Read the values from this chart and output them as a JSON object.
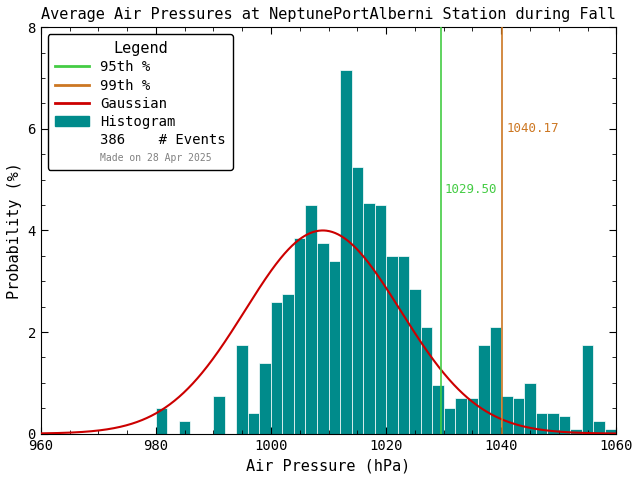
{
  "title": "Average Air Pressures at NeptunePortAlberni Station during Fall",
  "xlabel": "Air Pressure (hPa)",
  "ylabel": "Probability (%)",
  "xmin": 960,
  "xmax": 1060,
  "ymin": 0,
  "ymax": 8,
  "bar_color": "#008B8B",
  "bar_edge_color": "#ffffff",
  "gaussian_color": "#cc0000",
  "percentile_95_color": "#44cc44",
  "percentile_99_color": "#cc7722",
  "percentile_95_value": 1029.5,
  "percentile_99_value": 1040.17,
  "n_events": 386,
  "gauss_mean": 1009.0,
  "gauss_std": 13.5,
  "gauss_peak": 4.0,
  "bin_width": 2,
  "made_on_text": "Made on 28 Apr 2025",
  "bin_centers": [
    961,
    963,
    965,
    967,
    969,
    971,
    973,
    975,
    977,
    979,
    981,
    983,
    985,
    987,
    989,
    991,
    993,
    995,
    997,
    999,
    1001,
    1003,
    1005,
    1007,
    1009,
    1011,
    1013,
    1015,
    1017,
    1019,
    1021,
    1023,
    1025,
    1027,
    1029,
    1031,
    1033,
    1035,
    1037,
    1039,
    1041,
    1043,
    1045,
    1047,
    1049,
    1051,
    1053,
    1055,
    1057,
    1059
  ],
  "bin_heights": [
    0.0,
    0.0,
    0.0,
    0.0,
    0.0,
    0.0,
    0.0,
    0.0,
    0.0,
    0.0,
    0.5,
    0.0,
    0.25,
    0.0,
    0.0,
    0.75,
    0.0,
    1.75,
    0.4,
    1.4,
    2.6,
    2.75,
    3.85,
    4.5,
    3.75,
    3.4,
    7.15,
    5.25,
    4.55,
    4.5,
    3.5,
    3.5,
    2.85,
    2.1,
    0.95,
    0.5,
    0.7,
    0.7,
    1.75,
    2.1,
    0.75,
    0.7,
    1.0,
    0.4,
    0.4,
    0.35,
    0.1,
    1.75,
    0.25,
    0.1
  ],
  "background_color": "#ffffff",
  "font_family": "monospace",
  "title_fontsize": 11,
  "label_fontsize": 11,
  "tick_fontsize": 10,
  "legend_fontsize": 10,
  "legend_title_fontsize": 11
}
